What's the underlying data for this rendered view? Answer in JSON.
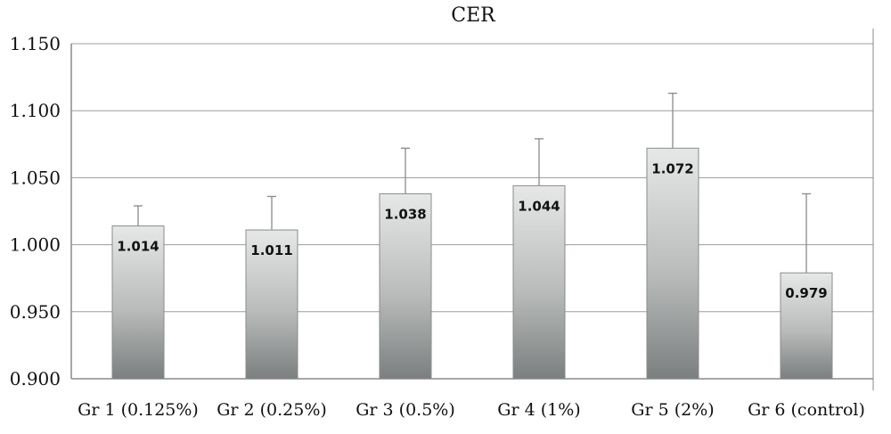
{
  "chart_data": {
    "type": "bar",
    "title": "CER",
    "xlabel": "",
    "ylabel": "",
    "categories": [
      "Gr 1 (0.125%)",
      "Gr 2 (0.25%)",
      "Gr 3 (0.5%)",
      "Gr 4 (1%)",
      "Gr 5 (2%)",
      "Gr 6 (control)"
    ],
    "values": [
      1.014,
      1.011,
      1.038,
      1.044,
      1.072,
      0.979
    ],
    "value_labels": [
      "1.014",
      "1.011",
      "1.038",
      "1.044",
      "1.072",
      "0.979"
    ],
    "error_upper": [
      1.029,
      1.036,
      1.072,
      1.079,
      1.113,
      1.038
    ],
    "ylim": [
      0.9,
      1.15
    ],
    "yticks": [
      0.9,
      0.95,
      1.0,
      1.05,
      1.1,
      1.15
    ],
    "ytick_labels": [
      "0.900",
      "0.950",
      "1.000",
      "1.050",
      "1.100",
      "1.150"
    ],
    "grid": true,
    "legend": "none",
    "colors": {
      "bar_light": "#e6e8e8",
      "bar_dark": "#7c7f7f",
      "bar_edge": "#8a8c8c",
      "grid": "#9c9c9c",
      "axis": "#8a8a8a",
      "error": "#8a8a8a"
    }
  }
}
